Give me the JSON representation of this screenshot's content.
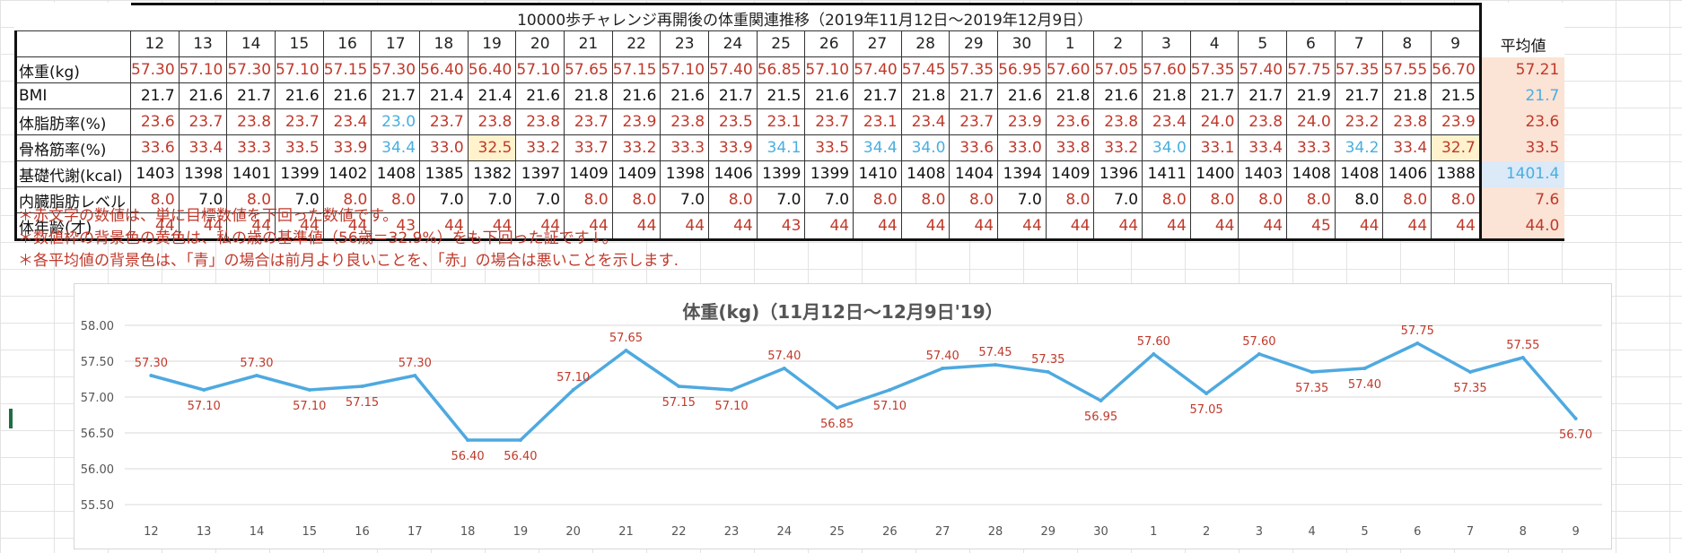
{
  "table": {
    "title": "10000歩チャレンジ再開後の体重関連推移（2019年11月12日〜2019年12月9日）",
    "avg_header": "平均値",
    "days": [
      "12",
      "13",
      "14",
      "15",
      "16",
      "17",
      "18",
      "19",
      "20",
      "21",
      "22",
      "23",
      "24",
      "25",
      "26",
      "27",
      "28",
      "29",
      "30",
      "1",
      "2",
      "3",
      "4",
      "5",
      "6",
      "7",
      "8",
      "9"
    ],
    "rows": [
      {
        "label": "体重(kg)",
        "values": [
          "57.30",
          "57.10",
          "57.30",
          "57.10",
          "57.15",
          "57.30",
          "56.40",
          "56.40",
          "57.10",
          "57.65",
          "57.15",
          "57.10",
          "57.40",
          "56.85",
          "57.10",
          "57.40",
          "57.45",
          "57.35",
          "56.95",
          "57.60",
          "57.05",
          "57.60",
          "57.35",
          "57.40",
          "57.75",
          "57.35",
          "57.55",
          "56.70"
        ],
        "colors": [
          "r",
          "r",
          "r",
          "r",
          "r",
          "r",
          "r",
          "r",
          "r",
          "r",
          "r",
          "r",
          "r",
          "r",
          "r",
          "r",
          "r",
          "r",
          "r",
          "r",
          "r",
          "r",
          "r",
          "r",
          "r",
          "r",
          "r",
          "r"
        ],
        "avg": "57.21",
        "avg_color": "r",
        "avg_bg": "red"
      },
      {
        "label": "BMI",
        "values": [
          "21.7",
          "21.6",
          "21.7",
          "21.6",
          "21.6",
          "21.7",
          "21.4",
          "21.4",
          "21.6",
          "21.8",
          "21.6",
          "21.6",
          "21.7",
          "21.5",
          "21.6",
          "21.7",
          "21.8",
          "21.7",
          "21.6",
          "21.8",
          "21.6",
          "21.8",
          "21.7",
          "21.7",
          "21.9",
          "21.7",
          "21.8",
          "21.5"
        ],
        "colors": [
          "k",
          "k",
          "k",
          "k",
          "k",
          "k",
          "k",
          "k",
          "k",
          "k",
          "k",
          "k",
          "k",
          "k",
          "k",
          "k",
          "k",
          "k",
          "k",
          "k",
          "k",
          "k",
          "k",
          "k",
          "k",
          "k",
          "k",
          "k"
        ],
        "avg": "21.7",
        "avg_color": "b",
        "avg_bg": "red"
      },
      {
        "label": "体脂肪率(%)",
        "values": [
          "23.6",
          "23.7",
          "23.8",
          "23.7",
          "23.4",
          "23.0",
          "23.7",
          "23.8",
          "23.8",
          "23.7",
          "23.9",
          "23.8",
          "23.5",
          "23.1",
          "23.7",
          "23.1",
          "23.4",
          "23.7",
          "23.9",
          "23.6",
          "23.8",
          "23.4",
          "24.0",
          "23.8",
          "24.0",
          "23.2",
          "23.8",
          "23.9"
        ],
        "colors": [
          "r",
          "r",
          "r",
          "r",
          "r",
          "b",
          "r",
          "r",
          "r",
          "r",
          "r",
          "r",
          "r",
          "r",
          "r",
          "r",
          "r",
          "r",
          "r",
          "r",
          "r",
          "r",
          "r",
          "r",
          "r",
          "r",
          "r",
          "r"
        ],
        "avg": "23.6",
        "avg_color": "r",
        "avg_bg": "red"
      },
      {
        "label": "骨格筋率(%)",
        "values": [
          "33.6",
          "33.4",
          "33.3",
          "33.5",
          "33.9",
          "34.4",
          "33.0",
          "32.5",
          "33.2",
          "33.7",
          "33.2",
          "33.3",
          "33.9",
          "34.1",
          "33.5",
          "34.4",
          "34.0",
          "33.6",
          "33.0",
          "33.8",
          "33.2",
          "34.0",
          "33.1",
          "33.4",
          "33.3",
          "34.2",
          "33.4",
          "32.7"
        ],
        "colors": [
          "r",
          "r",
          "r",
          "r",
          "r",
          "b",
          "r",
          "r",
          "r",
          "r",
          "r",
          "r",
          "r",
          "b",
          "r",
          "b",
          "b",
          "r",
          "r",
          "r",
          "r",
          "b",
          "r",
          "r",
          "r",
          "b",
          "r",
          "r"
        ],
        "yellow": [
          7,
          27
        ],
        "avg": "33.5",
        "avg_color": "r",
        "avg_bg": "red"
      },
      {
        "label": "基礎代謝(kcal)",
        "values": [
          "1403",
          "1398",
          "1401",
          "1399",
          "1402",
          "1408",
          "1385",
          "1382",
          "1397",
          "1409",
          "1409",
          "1398",
          "1406",
          "1399",
          "1399",
          "1410",
          "1408",
          "1404",
          "1394",
          "1409",
          "1396",
          "1411",
          "1400",
          "1403",
          "1408",
          "1408",
          "1406",
          "1388"
        ],
        "colors": [
          "k",
          "k",
          "k",
          "k",
          "k",
          "k",
          "k",
          "k",
          "k",
          "k",
          "k",
          "k",
          "k",
          "k",
          "k",
          "k",
          "k",
          "k",
          "k",
          "k",
          "k",
          "k",
          "k",
          "k",
          "k",
          "k",
          "k",
          "k"
        ],
        "avg": "1401.4",
        "avg_color": "b",
        "avg_bg": "blue"
      },
      {
        "label": "内臓脂肪レベル",
        "values": [
          "8.0",
          "7.0",
          "8.0",
          "7.0",
          "8.0",
          "8.0",
          "7.0",
          "7.0",
          "7.0",
          "8.0",
          "8.0",
          "7.0",
          "8.0",
          "7.0",
          "7.0",
          "8.0",
          "8.0",
          "8.0",
          "7.0",
          "8.0",
          "7.0",
          "8.0",
          "8.0",
          "8.0",
          "8.0",
          "8.0",
          "8.0",
          "8.0"
        ],
        "colors": [
          "r",
          "k",
          "r",
          "k",
          "r",
          "r",
          "k",
          "k",
          "k",
          "r",
          "r",
          "k",
          "r",
          "k",
          "k",
          "r",
          "r",
          "r",
          "k",
          "r",
          "k",
          "r",
          "r",
          "r",
          "r",
          "k",
          "r",
          "r"
        ],
        "avg": "7.6",
        "avg_color": "r",
        "avg_bg": "red"
      },
      {
        "label": "体年齢(才)",
        "values": [
          "44",
          "44",
          "44",
          "44",
          "44",
          "43",
          "44",
          "44",
          "44",
          "44",
          "44",
          "44",
          "44",
          "43",
          "44",
          "44",
          "44",
          "44",
          "44",
          "44",
          "44",
          "44",
          "44",
          "44",
          "45",
          "44",
          "44",
          "44"
        ],
        "colors": [
          "r",
          "r",
          "r",
          "r",
          "r",
          "r",
          "r",
          "r",
          "r",
          "r",
          "r",
          "r",
          "r",
          "r",
          "r",
          "r",
          "r",
          "r",
          "r",
          "r",
          "r",
          "r",
          "r",
          "r",
          "r",
          "r",
          "r",
          "r"
        ],
        "avg": "44.0",
        "avg_color": "r",
        "avg_bg": "red"
      }
    ]
  },
  "notes": [
    "＊赤文字の数値は、単に目標数値を下回った数値です。",
    "＊数値枠の背景色の黄色は、私の歳の基準値（56歳＝32.9%）をも下回った証です↓。",
    "＊各平均値の背景色は、「青」の場合は前月より良いことを、「赤」の場合は悪いことを示します."
  ],
  "colors": {
    "red_text": "#c0392b",
    "blue_text": "#49aee0",
    "line": "#4ea9e0",
    "avg_red_bg": "#fbe3d5",
    "avg_blue_bg": "#dce9f7",
    "yellow_bg": "#fff2cc"
  },
  "chart_data": {
    "type": "line",
    "title": "体重(kg)（11月12日〜12月9日'19）",
    "categories": [
      "12",
      "13",
      "14",
      "15",
      "16",
      "17",
      "18",
      "19",
      "20",
      "21",
      "22",
      "23",
      "24",
      "25",
      "26",
      "27",
      "28",
      "29",
      "30",
      "1",
      "2",
      "3",
      "4",
      "5",
      "6",
      "7",
      "8",
      "9"
    ],
    "values": [
      57.3,
      57.1,
      57.3,
      57.1,
      57.15,
      57.3,
      56.4,
      56.4,
      57.1,
      57.65,
      57.15,
      57.1,
      57.4,
      56.85,
      57.1,
      57.4,
      57.45,
      57.35,
      56.95,
      57.6,
      57.05,
      57.6,
      57.35,
      57.4,
      57.75,
      57.35,
      57.55,
      56.7
    ],
    "data_labels": [
      "57.30",
      "57.10",
      "57.30",
      "57.10",
      "57.15",
      "57.30",
      "56.40",
      "56.40",
      "57.10",
      "57.65",
      "57.15",
      "57.10",
      "57.40",
      "56.85",
      "57.10",
      "57.40",
      "57.45",
      "57.35",
      "56.95",
      "57.60",
      "57.05",
      "57.60",
      "57.35",
      "57.40",
      "57.75",
      "57.35",
      "57.55",
      "56.70"
    ],
    "yticks": [
      "58.00",
      "57.50",
      "57.00",
      "56.50",
      "56.00",
      "55.50"
    ],
    "ylim": [
      55.5,
      58.0
    ],
    "grid": true,
    "legend": "none"
  }
}
